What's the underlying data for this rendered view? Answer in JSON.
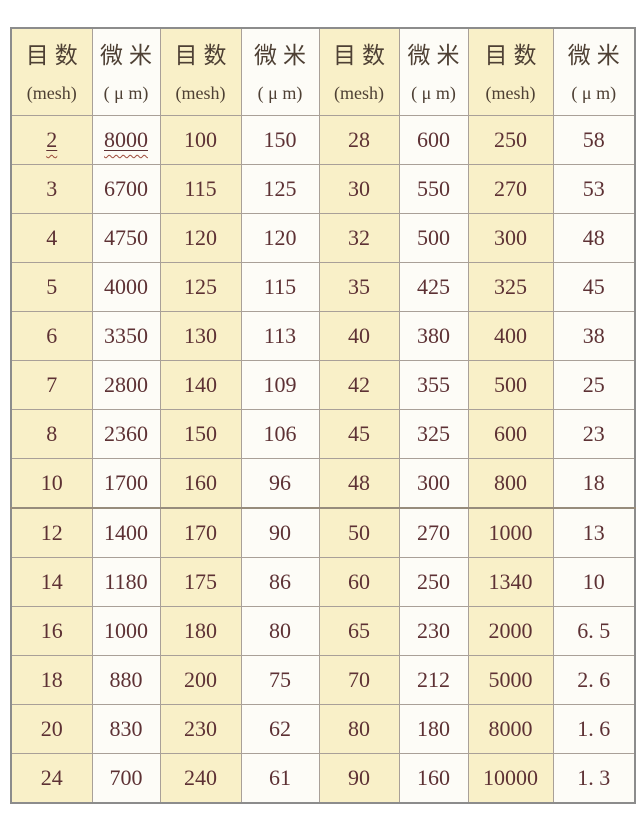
{
  "table": {
    "header": {
      "mesh_title": "目数",
      "mesh_sub": "(mesh)",
      "um_title": "微米",
      "um_sub": "( μ m)",
      "pair_count": 4
    },
    "rows": [
      [
        "2",
        "8000",
        "100",
        "150",
        "28",
        "600",
        "250",
        "58"
      ],
      [
        "3",
        "6700",
        "115",
        "125",
        "30",
        "550",
        "270",
        "53"
      ],
      [
        "4",
        "4750",
        "120",
        "120",
        "32",
        "500",
        "300",
        "48"
      ],
      [
        "5",
        "4000",
        "125",
        "115",
        "35",
        "425",
        "325",
        "45"
      ],
      [
        "6",
        "3350",
        "130",
        "113",
        "40",
        "380",
        "400",
        "38"
      ],
      [
        "7",
        "2800",
        "140",
        "109",
        "42",
        "355",
        "500",
        "25"
      ],
      [
        "8",
        "2360",
        "150",
        "106",
        "45",
        "325",
        "600",
        "23"
      ],
      [
        "10",
        "1700",
        "160",
        "96",
        "48",
        "300",
        "800",
        "18"
      ],
      [
        "12",
        "1400",
        "170",
        "90",
        "50",
        "270",
        "1000",
        "13"
      ],
      [
        "14",
        "1180",
        "175",
        "86",
        "60",
        "250",
        "1340",
        "10"
      ],
      [
        "16",
        "1000",
        "180",
        "80",
        "65",
        "230",
        "2000",
        "6. 5"
      ],
      [
        "18",
        "880",
        "200",
        "75",
        "70",
        "212",
        "5000",
        "2. 6"
      ],
      [
        "20",
        "830",
        "230",
        "62",
        "80",
        "180",
        "8000",
        "1. 6"
      ],
      [
        "24",
        "700",
        "240",
        "61",
        "90",
        "160",
        "10000",
        "1. 3"
      ]
    ],
    "squiggle_cells": [
      [
        0,
        0
      ],
      [
        0,
        1
      ]
    ]
  },
  "colors": {
    "mesh_column_bg": "#f9f0c8",
    "um_column_bg": "#fdfcf7",
    "number_text": "#5d3134",
    "header_text": "#4e4034",
    "grid_border": "#a9a098",
    "outer_border": "#8c8c8c",
    "squiggle_underline": "#9c4a3a"
  }
}
